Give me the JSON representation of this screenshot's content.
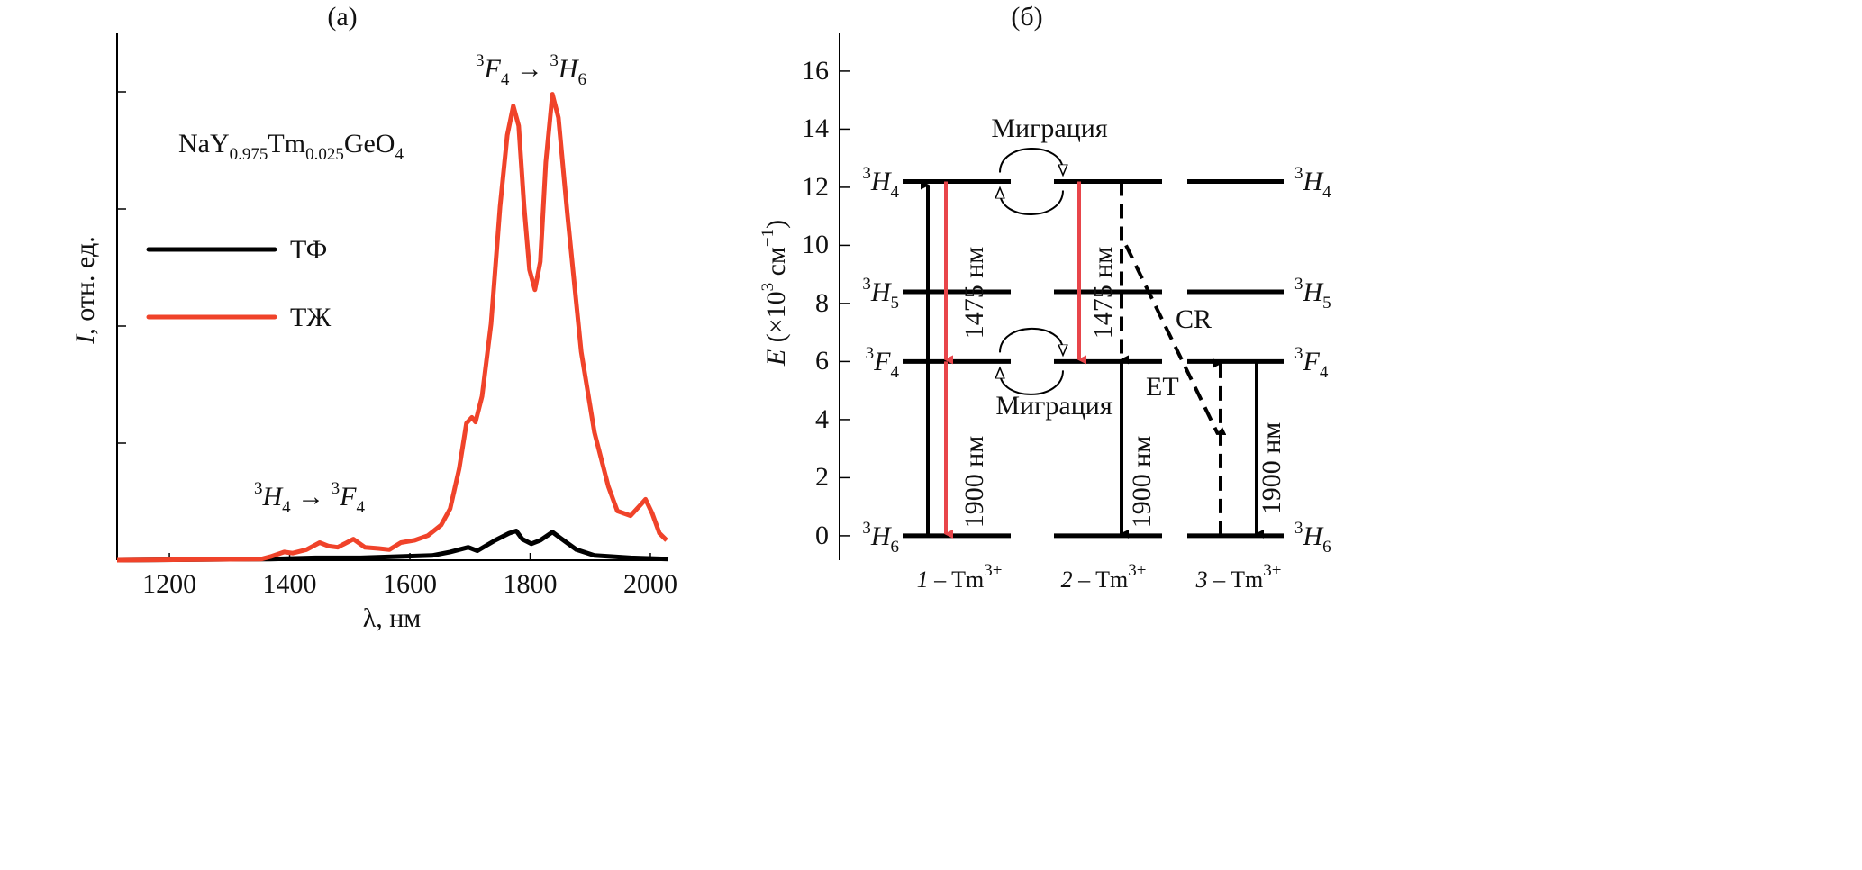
{
  "panel_a": {
    "label": "(а)",
    "compound": {
      "p1": "NaY",
      "s1": "0.975",
      "p2": "Tm",
      "s2": "0.025",
      "p3": "GeO",
      "s3": "4"
    },
    "annotation_main": {
      "sup1": "3",
      "sym1": "F",
      "sub1": "4",
      "arrow": "→",
      "sup2": "3",
      "sym2": "H",
      "sub2": "6"
    },
    "annotation_minor": {
      "sup1": "3",
      "sym1": "H",
      "sub1": "4",
      "arrow": "→",
      "sup2": "3",
      "sym2": "F",
      "sub2": "4"
    }
  },
  "panel_b": {
    "label": "(б)",
    "ylabel": {
      "sym": "E",
      "pre": " (×10",
      "sup": "3",
      "mid": " см",
      "sup2": "−1",
      "post": ")"
    },
    "yticks": [
      "0",
      "2",
      "4",
      "6",
      "8",
      "10",
      "12",
      "14",
      "16"
    ],
    "ylim": [
      -0.84,
      17.3
    ],
    "levels": [
      {
        "sup": "3",
        "sym": "H",
        "sub": "4",
        "energy": 12.2
      },
      {
        "sup": "3",
        "sym": "H",
        "sub": "5",
        "energy": 8.4
      },
      {
        "sup": "3",
        "sym": "F",
        "sub": "4",
        "energy": 6.0
      },
      {
        "sup": "3",
        "sym": "H",
        "sub": "6",
        "energy": 0
      }
    ],
    "ions": [
      {
        "num": "1",
        "dash": " – Tm",
        "sup": "3+"
      },
      {
        "num": "2",
        "dash": " – Tm",
        "sup": "3+"
      },
      {
        "num": "3",
        "dash": " – Tm",
        "sup": "3+"
      }
    ],
    "transitions": {
      "t1475_a": "1475 нм",
      "t1900_a": "1900 нм",
      "t1475_b": "1475 нм",
      "t1900_b": "1900 нм",
      "t1900_c": "1900 нм"
    },
    "migration_top": "Миграция",
    "migration_bottom": "Миграция",
    "et": "ET",
    "cr": "CR",
    "colors": {
      "emission": "#e8454a",
      "level": "#000000"
    }
  },
  "chart_data": {
    "type": "line",
    "title": "",
    "xlabel": "λ, нм",
    "ylabel": "I, отн. ед.",
    "xlim": [
      1113,
      2030
    ],
    "ylim": [
      0,
      4.5
    ],
    "xticks": [
      1200,
      1400,
      1600,
      1800,
      2000
    ],
    "yticks": [
      1,
      2,
      3,
      4
    ],
    "ytick_labels_shown": false,
    "grid": false,
    "legend": "left",
    "series": [
      {
        "name": "ТФ",
        "color": "#000000",
        "x": [
          1113,
          1368,
          1443,
          1518,
          1637,
          1667,
          1697,
          1712,
          1742,
          1765,
          1777,
          1787,
          1802,
          1817,
          1837,
          1850,
          1877,
          1907,
          1967,
          2030
        ],
        "y": [
          0,
          0.01,
          0.02,
          0.02,
          0.04,
          0.07,
          0.11,
          0.08,
          0.17,
          0.23,
          0.25,
          0.18,
          0.14,
          0.17,
          0.24,
          0.19,
          0.09,
          0.04,
          0.02,
          0.01
        ]
      },
      {
        "name": "ТЖ",
        "color": "#f0432a",
        "x": [
          1113,
          1353,
          1368,
          1391,
          1405,
          1428,
          1450,
          1465,
          1480,
          1506,
          1525,
          1548,
          1566,
          1585,
          1608,
          1630,
          1652,
          1667,
          1682,
          1694,
          1703,
          1709,
          1720,
          1735,
          1750,
          1762,
          1772,
          1781,
          1790,
          1799,
          1808,
          1817,
          1826,
          1837,
          1847,
          1862,
          1885,
          1907,
          1930,
          1945,
          1967,
          1985,
          1992,
          2003,
          2015,
          2027
        ],
        "y": [
          0,
          0.01,
          0.03,
          0.07,
          0.06,
          0.09,
          0.15,
          0.12,
          0.11,
          0.18,
          0.11,
          0.1,
          0.09,
          0.15,
          0.17,
          0.21,
          0.3,
          0.44,
          0.78,
          1.17,
          1.22,
          1.18,
          1.4,
          2.02,
          3.02,
          3.63,
          3.88,
          3.71,
          3.02,
          2.48,
          2.31,
          2.55,
          3.4,
          3.98,
          3.78,
          2.95,
          1.78,
          1.09,
          0.63,
          0.42,
          0.38,
          0.48,
          0.52,
          0.4,
          0.23,
          0.17
        ]
      }
    ]
  }
}
